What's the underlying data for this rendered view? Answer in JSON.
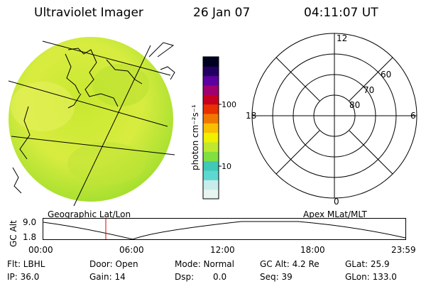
{
  "header": {
    "title": "Ultraviolet Imager",
    "date": "26 Jan 07",
    "time": "04:11:07 UT"
  },
  "colorbar": {
    "unit_label": "photon cm⁻²s⁻¹",
    "tick_100": "100",
    "tick_10": "10",
    "colors": [
      "#e8f4f0",
      "#c8ecec",
      "#5cd8d0",
      "#40c8b8",
      "#7fe040",
      "#c0e830",
      "#f0f000",
      "#f8c000",
      "#f07800",
      "#e83000",
      "#c80020",
      "#a00070",
      "#5c00a0",
      "#200060",
      "#000020"
    ]
  },
  "polar": {
    "label_top": "12",
    "label_bottom": "0",
    "label_left": "18",
    "label_right": "6",
    "ring_labels": [
      "60",
      "70",
      "80"
    ]
  },
  "panel_labels": {
    "left": "Geographic Lat/Lon",
    "right": "Apex MLat/MLT"
  },
  "altitude_plot": {
    "ylabel": "GC Alt",
    "y_top": "9.0",
    "y_bottom": "1.8",
    "x_ticks": [
      "00:00",
      "06:00",
      "12:00",
      "18:00",
      "23:59"
    ],
    "marker_time": "04:11"
  },
  "info": {
    "flt": "Flt: LBHL",
    "ip": "IP: 36.0",
    "door": "Door: Open",
    "gain": "Gain: 14",
    "mode": "Mode: Normal",
    "dsp": "Dsp:",
    "dsp_value": "0.0",
    "gcalt": "GC Alt: 4.2 Re",
    "seq": "Seq: 39",
    "glat": "GLat: 25.9",
    "glon": "GLon: 133.0"
  }
}
